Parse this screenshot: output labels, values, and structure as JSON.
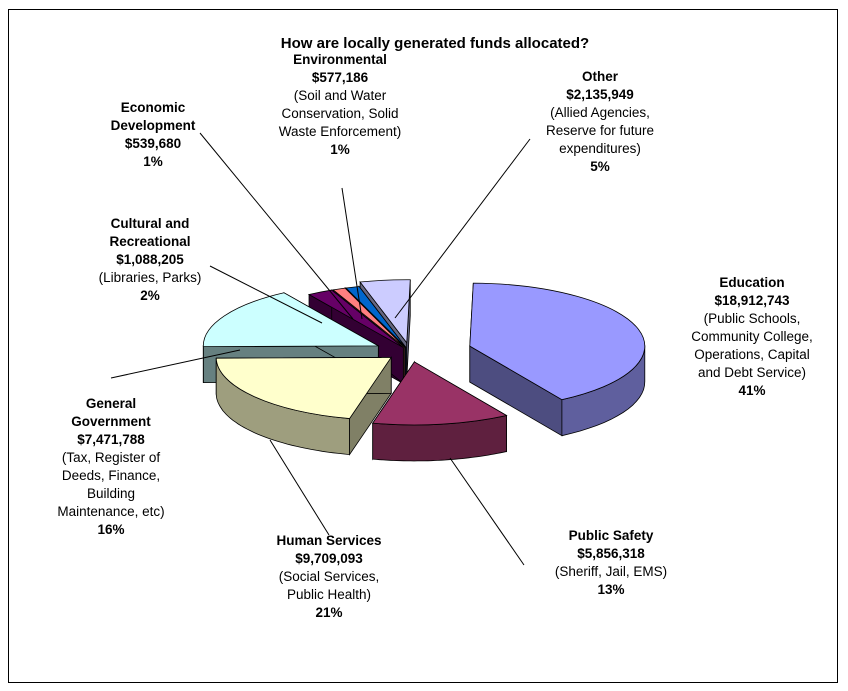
{
  "chart_data": {
    "type": "pie",
    "title": "How are locally generated funds allocated?",
    "slices": [
      {
        "key": "education",
        "name": "Education",
        "amount": "$18,912,743",
        "value": 18912743,
        "detail": [
          "(Public Schools,",
          "Community College,",
          "Operations, Capital",
          "and Debt Service)"
        ],
        "percent": "41%",
        "color": "#9999ff"
      },
      {
        "key": "public-safety",
        "name": "Public Safety",
        "amount": "$5,856,318",
        "value": 5856318,
        "detail": [
          "(Sheriff, Jail, EMS)"
        ],
        "percent": "13%",
        "color": "#993366"
      },
      {
        "key": "human-services",
        "name": "Human Services",
        "amount": "$9,709,093",
        "value": 9709093,
        "detail": [
          "(Social Services,",
          "Public Health)"
        ],
        "percent": "21%",
        "color": "#ffffcc"
      },
      {
        "key": "general-government",
        "name": "General Government",
        "amount": "$7,471,788",
        "value": 7471788,
        "detail": [
          "(Tax, Register of",
          "Deeds, Finance,",
          "Building",
          "Maintenance, etc)"
        ],
        "percent": "16%",
        "color": "#ccffff"
      },
      {
        "key": "cultural-recreational",
        "name": "Cultural and Recreational",
        "amount": "$1,088,205",
        "value": 1088205,
        "detail": [
          "(Libraries, Parks)"
        ],
        "percent": "2%",
        "color": "#660066"
      },
      {
        "key": "economic-development",
        "name": "Economic Development",
        "amount": "$539,680",
        "value": 539680,
        "detail": [],
        "percent": "1%",
        "color": "#ff8080"
      },
      {
        "key": "environmental",
        "name": "Environmental",
        "amount": "$577,186",
        "value": 577186,
        "detail": [
          "(Soil and Water",
          "Conservation, Solid",
          "Waste Enforcement)"
        ],
        "percent": "1%",
        "color": "#0066cc"
      },
      {
        "key": "other",
        "name": "Other",
        "amount": "$2,135,949",
        "value": 2135949,
        "detail": [
          "(Allied Agencies,",
          "Reserve for future",
          "expenditures)"
        ],
        "percent": "5%",
        "color": "#ccccff"
      }
    ],
    "label_name_lines": {
      "cultural-recreational": [
        "Cultural and",
        "Recreational"
      ],
      "economic-development": [
        "Economic",
        "Development"
      ],
      "general-government": [
        "General",
        "Government"
      ]
    }
  }
}
